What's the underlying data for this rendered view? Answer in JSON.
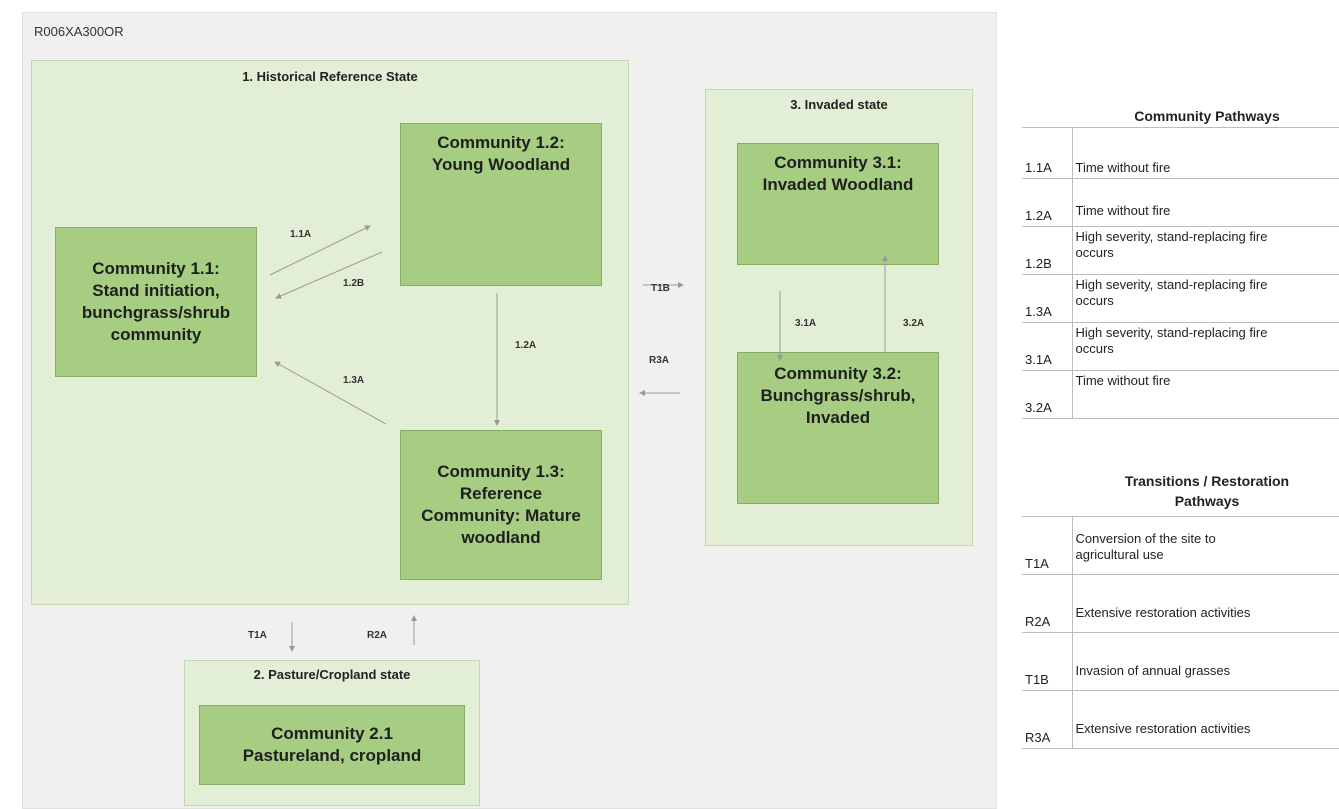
{
  "site_id": "R006XA300OR",
  "states": {
    "s1": {
      "title": "1. Historical Reference State"
    },
    "s2": {
      "title": "2. Pasture/Cropland state"
    },
    "s3": {
      "title": "3. Invaded state"
    }
  },
  "communities": {
    "c11": {
      "line1": "Community 1.1:",
      "line2": "Stand initiation,",
      "line3": "bunchgrass/shrub",
      "line4": "community"
    },
    "c12": {
      "line1": "Community 1.2:",
      "line2": "Young Woodland"
    },
    "c13": {
      "line1": "Community 1.3:",
      "line2": "Reference",
      "line3": "Community: Mature",
      "line4": "woodland"
    },
    "c21": {
      "line1": "Community 2.1",
      "line2": "Pastureland, cropland"
    },
    "c31": {
      "line1": "Community 3.1:",
      "line2": "Invaded Woodland"
    },
    "c32": {
      "line1": "Community 3.2:",
      "line2": "Bunchgrass/shrub,",
      "line3": "Invaded"
    }
  },
  "arrow_labels": {
    "p11a": "1.1A",
    "p12b": "1.2B",
    "p12a": "1.2A",
    "p13a": "1.3A",
    "t1b": "T1B",
    "r3a": "R3A",
    "p31a": "3.1A",
    "p32a": "3.2A",
    "t1a": "T1A",
    "r2a": "R2A"
  },
  "legend": {
    "community_pathways": {
      "title": "Community Pathways",
      "rows": [
        {
          "code": "1.1A",
          "desc_line1": "Time without fire",
          "desc_line2": ""
        },
        {
          "code": "1.2A",
          "desc_line1": "Time without fire",
          "desc_line2": ""
        },
        {
          "code": "1.2B",
          "desc_line1": "High severity, stand-replacing fire",
          "desc_line2": "occurs"
        },
        {
          "code": "1.3A",
          "desc_line1": "High severity, stand-replacing fire",
          "desc_line2": "occurs"
        },
        {
          "code": "3.1A",
          "desc_line1": "High severity, stand-replacing fire",
          "desc_line2": "occurs"
        },
        {
          "code": "3.2A",
          "desc_line1": "Time without fire",
          "desc_line2": ""
        }
      ]
    },
    "transitions": {
      "title_line1": "Transitions / Restoration",
      "title_line2": "Pathways",
      "rows": [
        {
          "code": "T1A",
          "desc_line1": "Conversion of the site to",
          "desc_line2": "agricultural use"
        },
        {
          "code": "R2A",
          "desc_line1": "Extensive restoration activities",
          "desc_line2": ""
        },
        {
          "code": "T1B",
          "desc_line1": "Invasion of annual grasses",
          "desc_line2": ""
        },
        {
          "code": "R3A",
          "desc_line1": "Extensive restoration activities",
          "desc_line2": ""
        }
      ]
    }
  },
  "colors": {
    "canvas_bg": "#f0f0ef",
    "state_bg": "#e3eed6",
    "community_fill": "#a6cd82",
    "arrow": "#999999"
  }
}
